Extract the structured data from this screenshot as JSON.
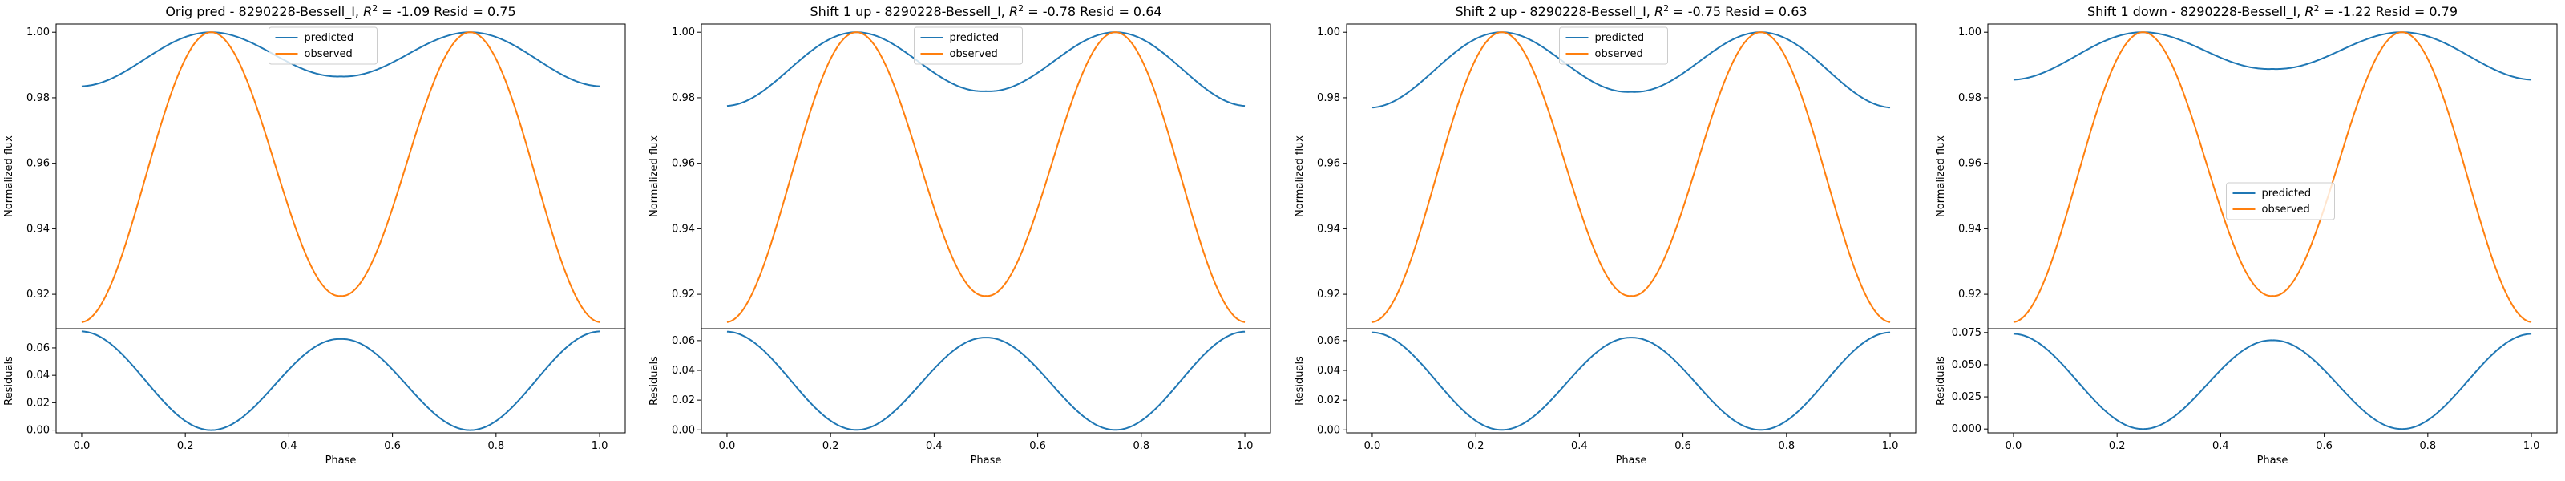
{
  "page": {
    "background": "#ffffff"
  },
  "colors": {
    "predicted": "#1f77b4",
    "observed": "#ff7f0e"
  },
  "chart_data": [
    {
      "type": "line",
      "title_prefix": "Orig pred - 8290228-Bessell_I, ",
      "title_suffix": " = -1.09 Resid = 0.75",
      "flux_axis": {
        "ylabel": "Normalized flux",
        "ylim": [
          0.9095,
          1.0025
        ],
        "ticks": [
          "0.92",
          "0.94",
          "0.96",
          "0.98",
          "1.00"
        ],
        "tick_values": [
          0.92,
          0.94,
          0.96,
          0.98,
          1.0
        ]
      },
      "resid_axis": {
        "ylabel": "Residuals",
        "xlabel": "Phase",
        "ylim": [
          -0.002,
          0.074
        ],
        "ticks": [
          "0.00",
          "0.02",
          "0.04",
          "0.06"
        ],
        "tick_values": [
          0.0,
          0.02,
          0.04,
          0.06
        ]
      },
      "xticks": [
        "0.0",
        "0.2",
        "0.4",
        "0.6",
        "0.8",
        "1.0"
      ],
      "legend": {
        "position": "upper center",
        "labels": [
          "predicted",
          "observed"
        ]
      },
      "series": [
        {
          "name": "predicted",
          "model": {
            "min": 0.9835,
            "mid": 0.9865,
            "peak": 1.0
          }
        },
        {
          "name": "observed",
          "model": {
            "min": 0.9115,
            "mid": 0.9195,
            "peak": 1.0
          }
        }
      ],
      "residuals": {
        "edge": 0.072,
        "mid": 0.0665,
        "zero": 0.0
      }
    },
    {
      "type": "line",
      "title_prefix": "Shift 1 up - 8290228-Bessell_I, ",
      "title_suffix": " = -0.78 Resid = 0.64",
      "flux_axis": {
        "ylabel": "Normalized flux",
        "ylim": [
          0.9095,
          1.0025
        ],
        "ticks": [
          "0.92",
          "0.94",
          "0.96",
          "0.98",
          "1.00"
        ],
        "tick_values": [
          0.92,
          0.94,
          0.96,
          0.98,
          1.0
        ]
      },
      "resid_axis": {
        "ylabel": "Residuals",
        "xlabel": "Phase",
        "ylim": [
          -0.002,
          0.068
        ],
        "ticks": [
          "0.00",
          "0.02",
          "0.04",
          "0.06"
        ],
        "tick_values": [
          0.0,
          0.02,
          0.04,
          0.06
        ]
      },
      "xticks": [
        "0.0",
        "0.2",
        "0.4",
        "0.6",
        "0.8",
        "1.0"
      ],
      "legend": {
        "position": "upper center",
        "labels": [
          "predicted",
          "observed"
        ]
      },
      "series": [
        {
          "name": "predicted",
          "model": {
            "min": 0.9775,
            "mid": 0.982,
            "peak": 1.0
          }
        },
        {
          "name": "observed",
          "model": {
            "min": 0.9115,
            "mid": 0.9195,
            "peak": 1.0
          }
        }
      ],
      "residuals": {
        "edge": 0.066,
        "mid": 0.062,
        "zero": 0.0
      }
    },
    {
      "type": "line",
      "title_prefix": "Shift 2 up - 8290228-Bessell_I, ",
      "title_suffix": " = -0.75 Resid = 0.63",
      "flux_axis": {
        "ylabel": "Normalized flux",
        "ylim": [
          0.9095,
          1.0025
        ],
        "ticks": [
          "0.92",
          "0.94",
          "0.96",
          "0.98",
          "1.00"
        ],
        "tick_values": [
          0.92,
          0.94,
          0.96,
          0.98,
          1.0
        ]
      },
      "resid_axis": {
        "ylabel": "Residuals",
        "xlabel": "Phase",
        "ylim": [
          -0.002,
          0.068
        ],
        "ticks": [
          "0.00",
          "0.02",
          "0.04",
          "0.06"
        ],
        "tick_values": [
          0.0,
          0.02,
          0.04,
          0.06
        ]
      },
      "xticks": [
        "0.0",
        "0.2",
        "0.4",
        "0.6",
        "0.8",
        "1.0"
      ],
      "legend": {
        "position": "upper center",
        "labels": [
          "predicted",
          "observed"
        ]
      },
      "series": [
        {
          "name": "predicted",
          "model": {
            "min": 0.977,
            "mid": 0.9818,
            "peak": 1.0
          }
        },
        {
          "name": "observed",
          "model": {
            "min": 0.9115,
            "mid": 0.9195,
            "peak": 1.0
          }
        }
      ],
      "residuals": {
        "edge": 0.0655,
        "mid": 0.062,
        "zero": 0.0
      }
    },
    {
      "type": "line",
      "title_prefix": "Shift 1 down - 8290228-Bessell_I, ",
      "title_suffix": " = -1.22 Resid = 0.79",
      "flux_axis": {
        "ylabel": "Normalized flux",
        "ylim": [
          0.9095,
          1.0025
        ],
        "ticks": [
          "0.92",
          "0.94",
          "0.96",
          "0.98",
          "1.00"
        ],
        "tick_values": [
          0.92,
          0.94,
          0.96,
          0.98,
          1.0
        ]
      },
      "resid_axis": {
        "ylabel": "Residuals",
        "xlabel": "Phase",
        "ylim": [
          -0.003,
          0.078
        ],
        "ticks": [
          "0.000",
          "0.025",
          "0.050",
          "0.075"
        ],
        "tick_values": [
          0.0,
          0.025,
          0.05,
          0.075
        ]
      },
      "xticks": [
        "0.0",
        "0.2",
        "0.4",
        "0.6",
        "0.8",
        "1.0"
      ],
      "legend": {
        "position": "center",
        "labels": [
          "predicted",
          "observed"
        ]
      },
      "series": [
        {
          "name": "predicted",
          "model": {
            "min": 0.9855,
            "mid": 0.9888,
            "peak": 1.0
          }
        },
        {
          "name": "observed",
          "model": {
            "min": 0.9115,
            "mid": 0.9195,
            "peak": 1.0
          }
        }
      ],
      "residuals": {
        "edge": 0.074,
        "mid": 0.069,
        "zero": 0.0
      }
    }
  ]
}
